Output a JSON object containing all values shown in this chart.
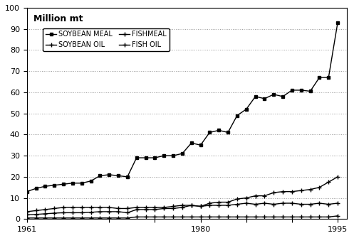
{
  "years": [
    1961,
    1962,
    1963,
    1964,
    1965,
    1966,
    1967,
    1968,
    1969,
    1970,
    1971,
    1972,
    1973,
    1974,
    1975,
    1976,
    1977,
    1978,
    1979,
    1980,
    1981,
    1982,
    1983,
    1984,
    1985,
    1986,
    1987,
    1988,
    1989,
    1990,
    1991,
    1992,
    1993,
    1994,
    1995
  ],
  "soybean_meal": [
    13,
    14.5,
    15.5,
    16,
    16.5,
    17,
    17,
    18,
    20.5,
    21,
    20.5,
    20,
    29,
    29,
    29,
    30,
    30,
    31,
    36,
    35,
    41,
    42,
    41,
    49,
    52,
    58,
    57,
    59,
    58,
    61,
    61,
    60.5,
    67,
    67,
    93
  ],
  "soybean_oil": [
    2,
    2.2,
    2.5,
    2.8,
    3.0,
    3.0,
    3.0,
    3.2,
    3.5,
    3.5,
    3.5,
    3.0,
    4.5,
    4.5,
    4.5,
    5.0,
    5.0,
    5.5,
    6.5,
    6.0,
    7.5,
    8.0,
    8.0,
    9.5,
    10.0,
    11.0,
    11.0,
    12.5,
    13.0,
    13.0,
    13.5,
    14.0,
    15.0,
    17.5,
    20.0
  ],
  "fishmeal": [
    3.5,
    4.0,
    4.5,
    5.0,
    5.5,
    5.5,
    5.5,
    5.5,
    5.5,
    5.5,
    5.0,
    5.0,
    5.5,
    5.5,
    5.5,
    5.5,
    6.0,
    6.5,
    6.5,
    6.0,
    6.5,
    6.5,
    6.5,
    7.0,
    7.5,
    7.0,
    7.5,
    7.0,
    7.5,
    7.5,
    7.0,
    7.0,
    7.5,
    7.0,
    7.5
  ],
  "fish_oil": [
    0.5,
    0.5,
    0.5,
    0.5,
    0.5,
    0.5,
    0.5,
    0.5,
    0.5,
    0.5,
    0.5,
    0.5,
    1.0,
    1.0,
    1.0,
    1.0,
    1.0,
    1.0,
    1.0,
    1.0,
    1.0,
    1.0,
    1.0,
    1.0,
    1.0,
    1.0,
    1.0,
    1.0,
    1.0,
    1.0,
    1.0,
    1.0,
    1.0,
    1.0,
    1.5
  ],
  "ylim": [
    0,
    100
  ],
  "yticks": [
    0,
    10,
    20,
    30,
    40,
    50,
    60,
    70,
    80,
    90,
    100
  ],
  "xticks": [
    1961,
    1970,
    1975,
    1980,
    1985,
    1990,
    1995
  ],
  "xticklabels": [
    "1961",
    "",
    "",
    "1980",
    "",
    "",
    "1995"
  ],
  "ylabel": "Million mt",
  "legend_labels": [
    "FISH OIL",
    "FISHMEAL",
    "SOYBEAN OIL",
    "SOYBEAN MEAL"
  ],
  "line_color": "#000000",
  "background_color": "#ffffff",
  "grid_color": "#999999"
}
